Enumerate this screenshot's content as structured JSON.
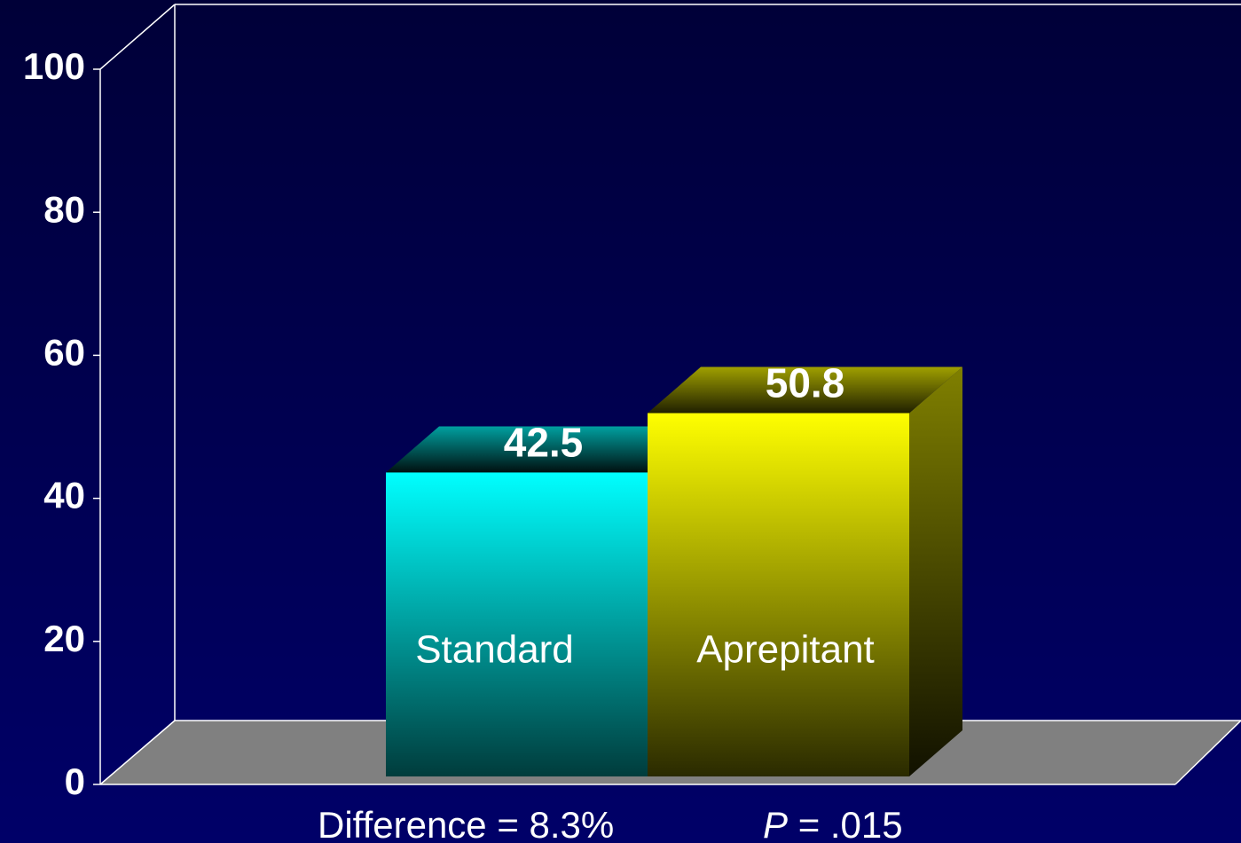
{
  "chart_data": {
    "type": "bar3d",
    "categories": [
      "Standard",
      "Aprepitant"
    ],
    "values": [
      42.5,
      50.8
    ],
    "colors": [
      "#00ffff",
      "#ffff00"
    ],
    "ylim": [
      0,
      100
    ],
    "yticks": [
      0,
      20,
      40,
      60,
      80,
      100
    ],
    "annotations": [
      "Difference = 8.3%",
      "P",
      "= .015"
    ]
  }
}
